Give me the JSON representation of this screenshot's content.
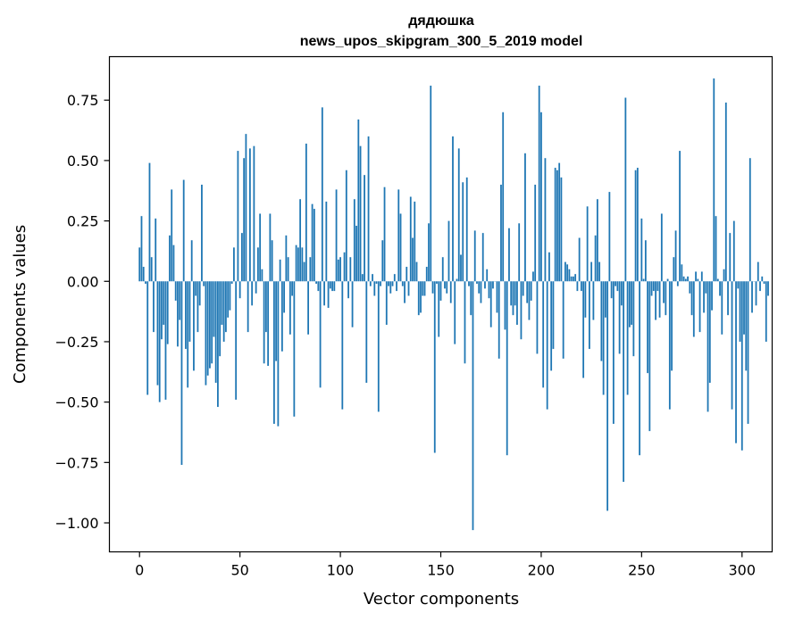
{
  "chart_data": {
    "type": "bar",
    "title_line1": "дядюшка",
    "title_line2": "news_upos_skipgram_300_5_2019 model",
    "xlabel": "Vector components",
    "ylabel": "Components values",
    "xlim": [
      -15,
      315
    ],
    "ylim": [
      -1.12,
      0.93
    ],
    "xticks": [
      0,
      50,
      100,
      150,
      200,
      250,
      300
    ],
    "xtick_labels": [
      "0",
      "50",
      "100",
      "150",
      "200",
      "250",
      "300"
    ],
    "yticks": [
      -1.0,
      -0.75,
      -0.5,
      -0.25,
      0.0,
      0.25,
      0.5,
      0.75
    ],
    "ytick_labels": [
      "−1.00",
      "−0.75",
      "−0.50",
      "−0.25",
      "0.00",
      "0.25",
      "0.50",
      "0.75"
    ],
    "color": "#1f77b4",
    "values": [
      0.14,
      0.27,
      0.06,
      -0.01,
      -0.47,
      0.49,
      0.1,
      -0.21,
      0.26,
      -0.43,
      -0.5,
      -0.24,
      -0.18,
      -0.49,
      -0.26,
      0.19,
      0.38,
      0.15,
      -0.08,
      -0.27,
      -0.16,
      -0.76,
      0.42,
      -0.28,
      -0.44,
      -0.25,
      0.17,
      -0.37,
      -0.06,
      -0.21,
      -0.1,
      0.4,
      -0.02,
      -0.43,
      -0.39,
      -0.36,
      -0.34,
      -0.23,
      -0.42,
      -0.52,
      -0.31,
      -0.18,
      -0.25,
      -0.21,
      -0.15,
      -0.12,
      -0.01,
      0.14,
      -0.49,
      0.54,
      -0.07,
      0.2,
      0.51,
      0.61,
      -0.21,
      0.55,
      -0.1,
      0.56,
      -0.05,
      0.14,
      0.28,
      0.05,
      -0.34,
      -0.21,
      -0.35,
      0.28,
      0.17,
      -0.59,
      -0.33,
      -0.6,
      0.09,
      -0.29,
      -0.13,
      0.19,
      0.1,
      -0.22,
      -0.06,
      -0.56,
      0.15,
      0.14,
      0.34,
      0.14,
      0.08,
      0.57,
      -0.22,
      0.1,
      0.32,
      0.3,
      -0.01,
      -0.04,
      -0.44,
      0.72,
      -0.1,
      0.33,
      -0.11,
      -0.03,
      -0.04,
      -0.04,
      0.38,
      0.09,
      0.1,
      -0.53,
      0.12,
      0.46,
      -0.07,
      0.1,
      -0.19,
      0.34,
      0.23,
      0.67,
      0.56,
      0.03,
      0.44,
      -0.42,
      0.6,
      -0.02,
      0.03,
      -0.06,
      -0.01,
      -0.54,
      -0.02,
      0.17,
      0.39,
      -0.18,
      -0.02,
      -0.05,
      -0.02,
      0.03,
      -0.04,
      0.38,
      0.28,
      -0.02,
      -0.09,
      0.06,
      -0.06,
      0.35,
      0.18,
      0.33,
      0.08,
      -0.14,
      -0.13,
      -0.06,
      -0.06,
      0.06,
      0.24,
      0.81,
      -0.05,
      -0.71,
      -0.01,
      -0.23,
      -0.08,
      0.1,
      -0.03,
      -0.05,
      0.25,
      -0.09,
      0.6,
      -0.26,
      0.01,
      0.55,
      0.11,
      0.41,
      -0.34,
      0.43,
      -0.02,
      -0.14,
      -1.03,
      0.21,
      -0.01,
      -0.05,
      -0.09,
      0.2,
      -0.03,
      0.05,
      -0.07,
      -0.19,
      -0.03,
      0.0,
      -0.13,
      -0.32,
      0.4,
      0.7,
      -0.2,
      -0.72,
      0.22,
      -0.1,
      -0.14,
      -0.1,
      -0.18,
      0.24,
      -0.24,
      -0.06,
      0.53,
      -0.09,
      -0.16,
      -0.08,
      0.04,
      0.4,
      -0.3,
      0.81,
      0.7,
      -0.44,
      0.51,
      -0.53,
      0.12,
      -0.37,
      -0.28,
      0.47,
      0.46,
      0.49,
      0.43,
      -0.32,
      0.08,
      0.07,
      0.05,
      0.02,
      0.02,
      0.03,
      -0.04,
      0.18,
      -0.04,
      -0.4,
      -0.15,
      0.31,
      -0.28,
      0.08,
      -0.16,
      0.19,
      0.34,
      0.08,
      -0.33,
      -0.47,
      -0.15,
      -0.95,
      0.37,
      -0.07,
      -0.59,
      -0.02,
      -0.04,
      -0.3,
      -0.1,
      -0.83,
      0.76,
      -0.47,
      -0.19,
      -0.18,
      -0.31,
      0.46,
      0.47,
      -0.72,
      0.26,
      0.01,
      0.17,
      -0.38,
      -0.62,
      -0.06,
      -0.04,
      -0.16,
      -0.04,
      -0.15,
      0.28,
      -0.09,
      -0.14,
      0.01,
      -0.53,
      -0.37,
      0.1,
      0.21,
      -0.02,
      0.54,
      0.07,
      0.02,
      0.01,
      0.02,
      -0.05,
      -0.14,
      -0.23,
      0.04,
      0.01,
      -0.21,
      0.04,
      -0.13,
      -0.05,
      -0.54,
      -0.42,
      -0.12,
      0.84,
      0.27,
      0.01,
      -0.06,
      -0.22,
      0.05,
      0.74,
      -0.14,
      0.2,
      -0.53,
      0.25,
      -0.67,
      -0.03,
      -0.25,
      -0.7,
      -0.22,
      -0.37,
      -0.59,
      0.51,
      -0.13,
      0.0,
      -0.1,
      0.08,
      -0.04,
      0.02,
      -0.01,
      -0.25,
      -0.06
    ]
  }
}
